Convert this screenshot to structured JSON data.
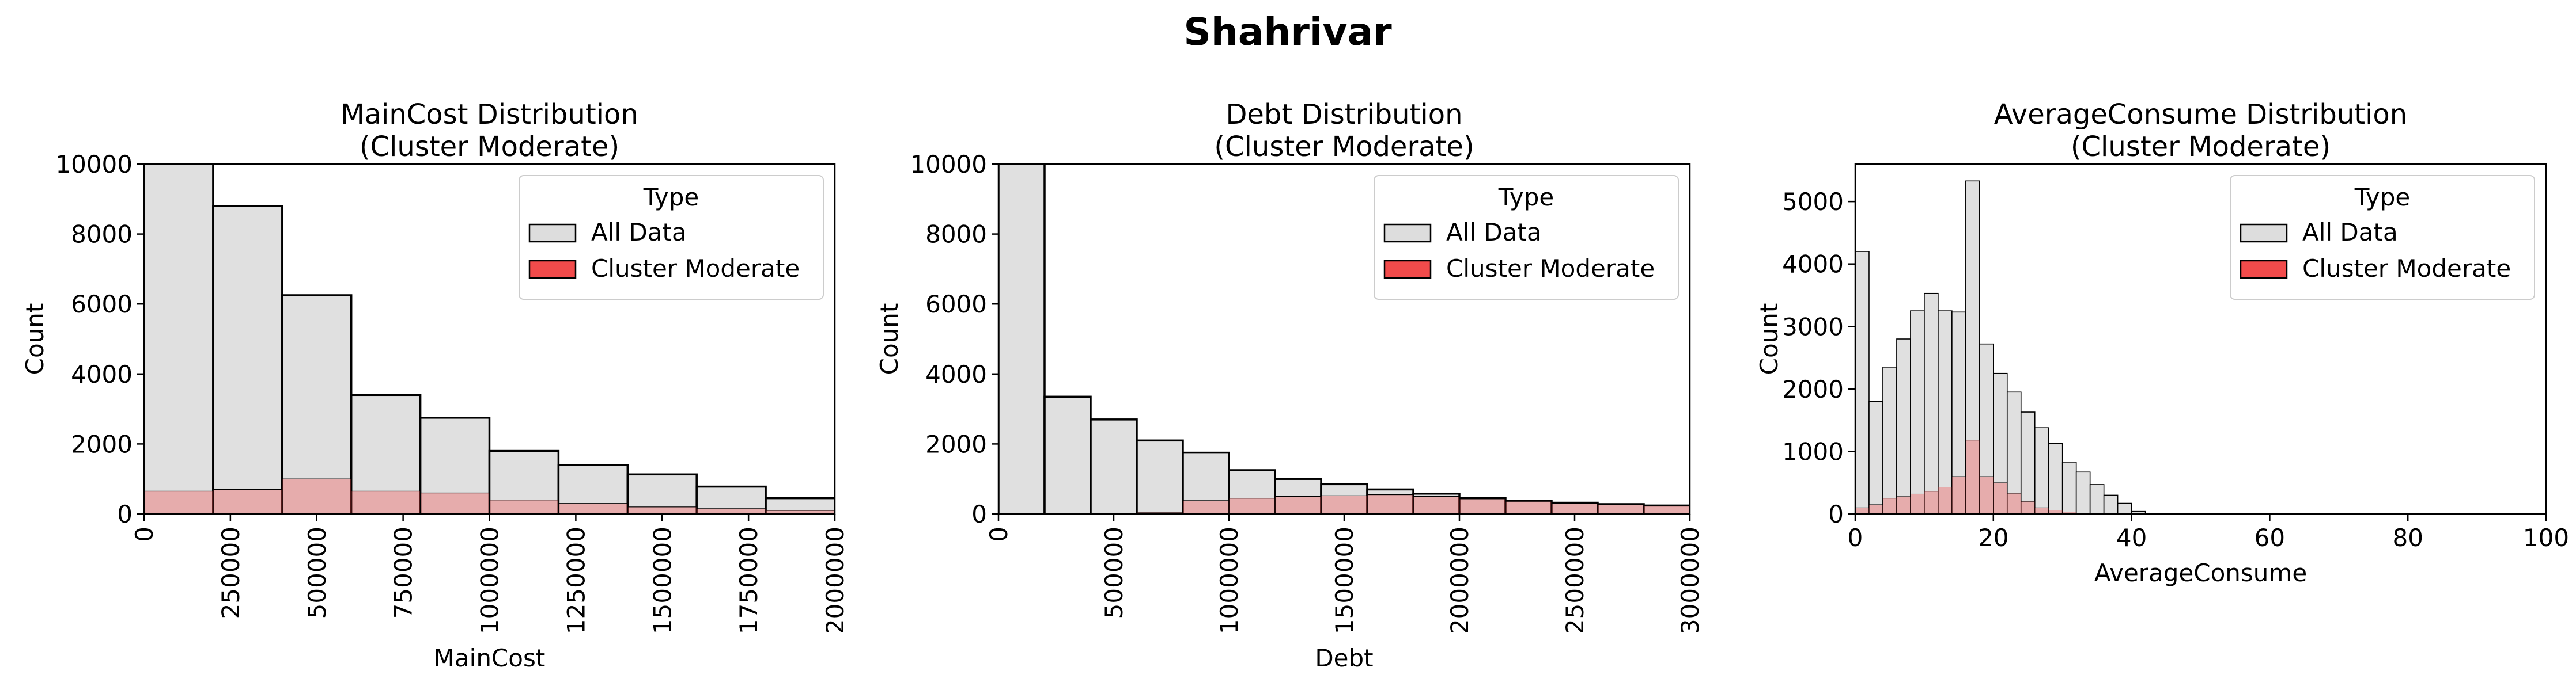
{
  "figure": {
    "title": "Shahrivar"
  },
  "legend_defaults": {
    "title": "Type",
    "entries": [
      {
        "label": "All Data",
        "color": "#dddddd"
      },
      {
        "label": "Cluster Moderate",
        "color": "#f24b4b"
      }
    ]
  },
  "chart_data": [
    {
      "type": "histogram",
      "title": "MainCost Distribution\n(Cluster Moderate)",
      "xlabel": "MainCost",
      "ylabel": "Count",
      "xlim": [
        0,
        2000000
      ],
      "ylim": [
        0,
        10000
      ],
      "xticks": [
        0,
        250000,
        500000,
        750000,
        1000000,
        1250000,
        1500000,
        1750000,
        2000000
      ],
      "xtick_labels": [
        "0",
        "250000",
        "500000",
        "750000",
        "1000000",
        "1250000",
        "1500000",
        "1750000",
        "2000000"
      ],
      "xtick_rotation": 90,
      "yticks": [
        0,
        2000,
        4000,
        6000,
        8000,
        10000
      ],
      "ytick_labels": [
        "0",
        "2000",
        "4000",
        "6000",
        "8000",
        "10000"
      ],
      "bin_start": 0,
      "bin_width": 200000,
      "series": [
        {
          "name": "All Data",
          "color": "#dddddd",
          "values": [
            10000,
            8800,
            6250,
            3400,
            2750,
            1800,
            1400,
            1130,
            780,
            450
          ]
        },
        {
          "name": "Cluster Moderate",
          "color": "#f24b4b",
          "values": [
            650,
            700,
            1000,
            650,
            600,
            400,
            300,
            200,
            150,
            100
          ]
        }
      ],
      "legend": {
        "title": "Type",
        "entries": [
          "All Data",
          "Cluster Moderate"
        ],
        "position": "top-right"
      },
      "grid": false
    },
    {
      "type": "histogram",
      "title": "Debt Distribution\n(Cluster Moderate)",
      "xlabel": "Debt",
      "ylabel": "Count",
      "xlim": [
        0,
        3000000
      ],
      "ylim": [
        0,
        10000
      ],
      "xticks": [
        0,
        500000,
        1000000,
        1500000,
        2000000,
        2500000,
        3000000
      ],
      "xtick_labels": [
        "0",
        "500000",
        "1000000",
        "1500000",
        "2000000",
        "2500000",
        "3000000"
      ],
      "xtick_rotation": 90,
      "yticks": [
        0,
        2000,
        4000,
        6000,
        8000,
        10000
      ],
      "ytick_labels": [
        "0",
        "2000",
        "4000",
        "6000",
        "8000",
        "10000"
      ],
      "bin_start": 0,
      "bin_width": 200000,
      "series": [
        {
          "name": "All Data",
          "color": "#dddddd",
          "values": [
            10000,
            3350,
            2700,
            2100,
            1750,
            1250,
            1000,
            850,
            700,
            580,
            450,
            380,
            320,
            280,
            240
          ]
        },
        {
          "name": "Cluster Moderate",
          "color": "#f24b4b",
          "values": [
            0,
            0,
            0,
            50,
            380,
            450,
            500,
            520,
            550,
            500,
            430,
            360,
            300,
            270,
            230
          ]
        }
      ],
      "legend": {
        "title": "Type",
        "entries": [
          "All Data",
          "Cluster Moderate"
        ],
        "position": "top-right"
      },
      "grid": false
    },
    {
      "type": "histogram",
      "title": "AverageConsume Distribution\n(Cluster Moderate)",
      "xlabel": "AverageConsume",
      "ylabel": "Count",
      "xlim": [
        0,
        100
      ],
      "ylim": [
        0,
        5600
      ],
      "xticks": [
        0,
        20,
        40,
        60,
        80,
        100
      ],
      "xtick_labels": [
        "0",
        "20",
        "40",
        "60",
        "80",
        "100"
      ],
      "xtick_rotation": 0,
      "yticks": [
        0,
        1000,
        2000,
        3000,
        4000,
        5000
      ],
      "ytick_labels": [
        "0",
        "1000",
        "2000",
        "3000",
        "4000",
        "5000"
      ],
      "bin_start": 0,
      "bin_width": 2,
      "series": [
        {
          "name": "All Data",
          "color": "#dddddd",
          "values": [
            4200,
            1800,
            2350,
            2800,
            3250,
            3530,
            3250,
            3230,
            5330,
            2720,
            2250,
            1950,
            1630,
            1380,
            1130,
            830,
            670,
            470,
            300,
            170,
            40,
            10,
            5
          ]
        },
        {
          "name": "Cluster Moderate",
          "color": "#f24b4b",
          "values": [
            100,
            150,
            250,
            280,
            320,
            360,
            430,
            600,
            1180,
            600,
            500,
            330,
            200,
            100,
            60,
            30,
            10,
            5,
            0,
            0,
            0,
            0,
            0
          ]
        }
      ],
      "legend": {
        "title": "Type",
        "entries": [
          "All Data",
          "Cluster Moderate"
        ],
        "position": "top-right"
      },
      "grid": false
    }
  ]
}
